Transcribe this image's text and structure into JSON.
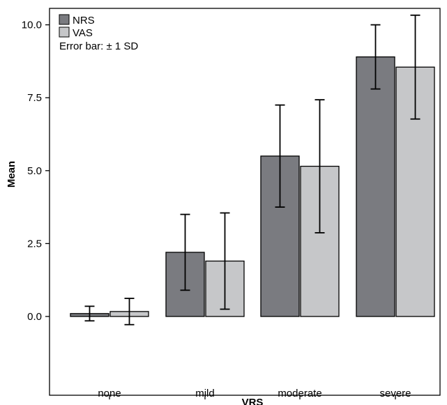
{
  "chart_data": {
    "type": "bar",
    "xlabel": "VRS",
    "ylabel": "Mean",
    "categories": [
      "none",
      "mild",
      "moderate",
      "severe"
    ],
    "series": [
      {
        "name": "NRS",
        "color": "#7a7b80",
        "values": [
          0.1,
          2.2,
          5.5,
          8.9
        ],
        "sd": [
          0.25,
          1.3,
          1.75,
          1.1
        ]
      },
      {
        "name": "VAS",
        "color": "#c6c7c9",
        "values": [
          0.17,
          1.9,
          5.15,
          8.55
        ],
        "sd": [
          0.45,
          1.65,
          2.28,
          1.78
        ]
      }
    ],
    "error_bar_note": "Error bar: ± 1 SD",
    "ylim": [
      -2.0,
      10.5
    ],
    "yticks": [
      0.0,
      2.5,
      5.0,
      7.5,
      10.0
    ],
    "ytick_labels": [
      "0.0",
      "2.5",
      "5.0",
      "7.5",
      "10.0"
    ],
    "grid": false,
    "legend_position": "top-left"
  }
}
